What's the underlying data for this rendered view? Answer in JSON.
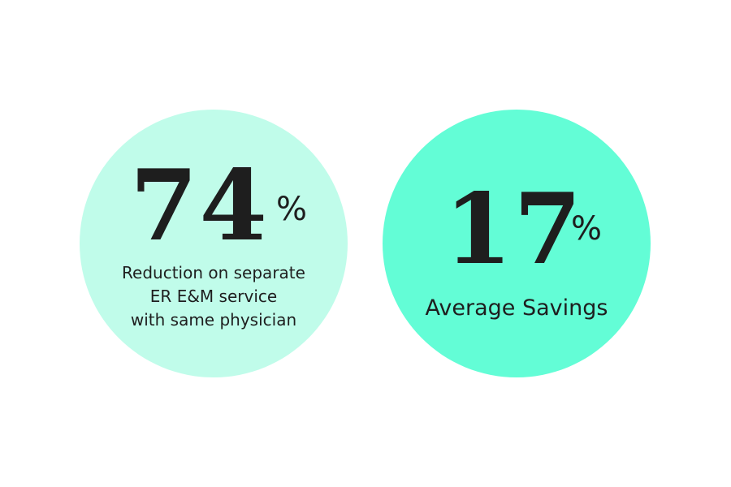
{
  "colors": {
    "circle_left": "#c0fcea",
    "circle_right": "#63fdd6",
    "text": "#1e1e1e",
    "background": "#ffffff"
  },
  "stats": [
    {
      "number": "74",
      "unit": "%",
      "caption_lines": [
        "Reduction on separate",
        "ER E&M service",
        "with same physician"
      ]
    },
    {
      "number": "17",
      "unit": "%",
      "caption_lines": [
        "Average Savings"
      ]
    }
  ]
}
